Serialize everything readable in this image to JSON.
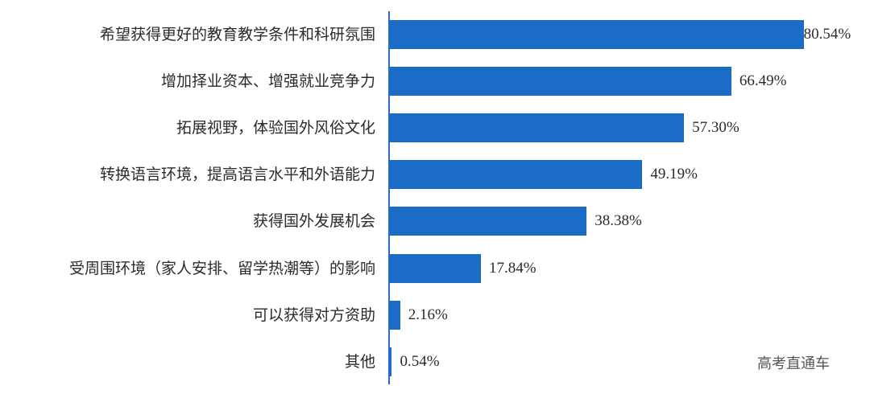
{
  "chart_data": {
    "type": "bar",
    "orientation": "horizontal",
    "title": "",
    "xlabel": "",
    "ylabel": "",
    "xlim": [
      0,
      82
    ],
    "grid": false,
    "legend": null,
    "bar_color": "#1a6cc7",
    "categories": [
      "希望获得更好的教育教学条件和科研氛围",
      "增加择业资本、增强就业竞争力",
      "拓展视野，体验国外风俗文化",
      "转换语言环境，提高语言水平和外语能力",
      "获得国外发展机会",
      "受周围环境（家人安排、留学热潮等）的影响",
      "可以获得对方资助",
      "其他"
    ],
    "values": [
      80.54,
      66.49,
      57.3,
      49.19,
      38.38,
      17.84,
      2.16,
      0.54
    ],
    "value_labels": [
      "80.54%",
      "66.49%",
      "57.30%",
      "49.19%",
      "38.38%",
      "17.84%",
      "2.16%",
      "0.54%"
    ]
  },
  "watermark": "高考直通车"
}
